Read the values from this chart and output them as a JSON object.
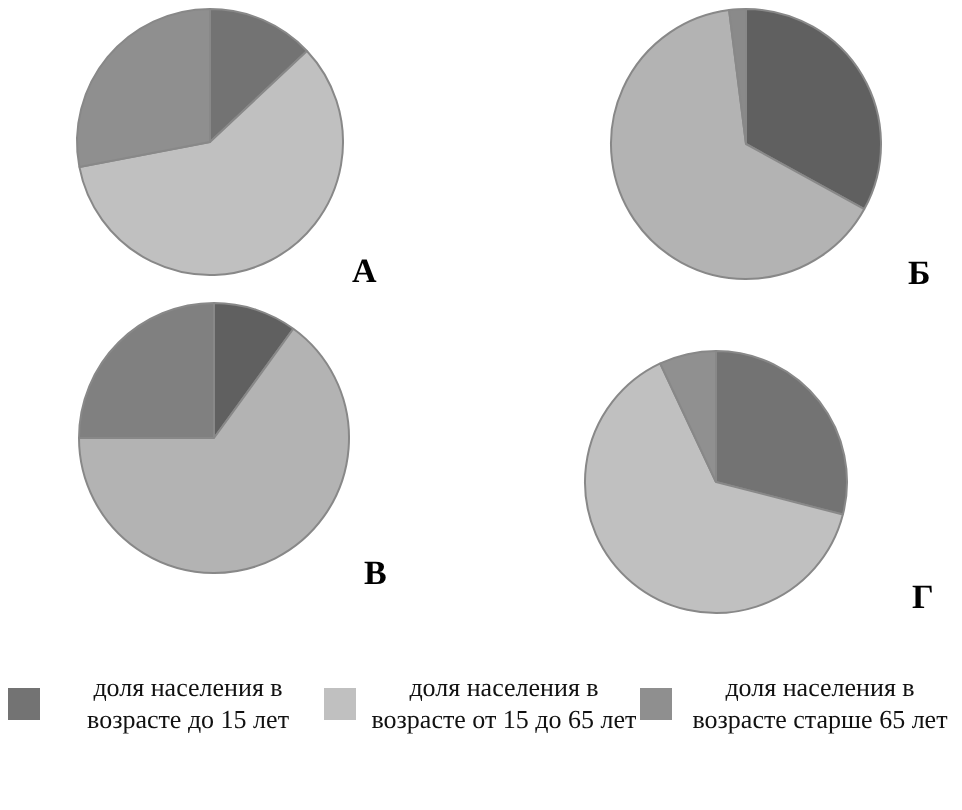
{
  "chart_data": [
    {
      "type": "pie",
      "title": "А",
      "legend": "bottom",
      "categories": [
        "доля населения в возрасте до 15 лет",
        "доля населения в возрасте от 15 до 65 лет",
        "доля населения в возрасте старше 65 лет"
      ],
      "values": [
        13,
        59,
        28
      ],
      "colors": [
        "#737373",
        "#c0c0c0",
        "#8f8f8f"
      ]
    },
    {
      "type": "pie",
      "title": "Б",
      "values": [
        33,
        65,
        2
      ],
      "colors": [
        "#606060",
        "#b3b3b3",
        "#8a8a8a"
      ]
    },
    {
      "type": "pie",
      "title": "В",
      "values": [
        10,
        65,
        25
      ],
      "colors": [
        "#606060",
        "#b3b3b3",
        "#808080"
      ]
    },
    {
      "type": "pie",
      "title": "Г",
      "values": [
        29,
        64,
        7
      ],
      "colors": [
        "#737373",
        "#c0c0c0",
        "#909090"
      ]
    }
  ]
}
